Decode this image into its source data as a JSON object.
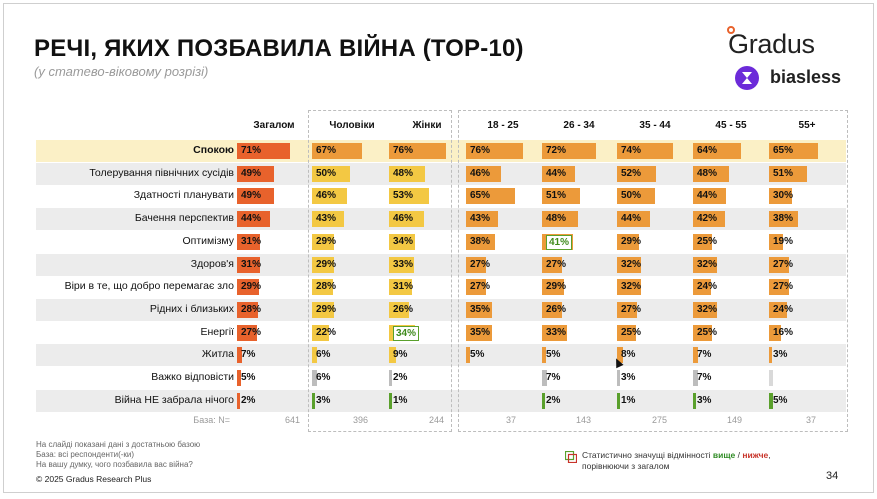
{
  "header": {
    "title": "РЕЧІ, ЯКИХ ПОЗБАВИЛА ВІЙНА (ТОР-10)",
    "subtitle": "(у статево-віковому розрізі)"
  },
  "logos": {
    "gradus": "Gradus",
    "biasless": "biasless"
  },
  "colors": {
    "highlight_row": "#fbf0c6",
    "zebra": "#ececec",
    "scale_high": "#e8622c",
    "scale_mid": "#ec9a3a",
    "scale_low": "#f3c843",
    "neutral": "#bdbdbd",
    "sig_green": "#5aa02c",
    "sig_red": "#c8342a"
  },
  "chart_data": {
    "type": "table",
    "title": "РЕЧІ, ЯКИХ ПОЗБАВИЛА ВІЙНА (ТОР-10)",
    "unit": "%",
    "columns": [
      "Загалом",
      "Чоловіки",
      "Жінки",
      "18 - 25",
      "26 - 34",
      "35 - 44",
      "45 - 55",
      "55+"
    ],
    "rows": [
      {
        "label": "Спокою",
        "values": [
          71,
          67,
          76,
          76,
          72,
          74,
          64,
          65
        ]
      },
      {
        "label": "Толерування північних сусідів",
        "values": [
          49,
          50,
          48,
          46,
          44,
          52,
          48,
          51
        ]
      },
      {
        "label": "Здатності планувати",
        "values": [
          49,
          46,
          53,
          65,
          51,
          50,
          44,
          30
        ]
      },
      {
        "label": "Бачення перспектив",
        "values": [
          44,
          43,
          46,
          43,
          48,
          44,
          42,
          38
        ]
      },
      {
        "label": "Оптимізму",
        "values": [
          31,
          29,
          34,
          38,
          41,
          29,
          25,
          19
        ]
      },
      {
        "label": "Здоров'я",
        "values": [
          31,
          29,
          33,
          27,
          27,
          32,
          32,
          27
        ]
      },
      {
        "label": "Віри в те, що добро перемагає зло",
        "values": [
          29,
          28,
          31,
          27,
          29,
          32,
          24,
          27
        ]
      },
      {
        "label": "Рідних і близьких",
        "values": [
          28,
          29,
          26,
          35,
          26,
          27,
          32,
          24
        ]
      },
      {
        "label": "Енергії",
        "values": [
          27,
          22,
          34,
          35,
          33,
          25,
          25,
          16
        ]
      },
      {
        "label": "Житла",
        "values": [
          7,
          6,
          9,
          5,
          5,
          8,
          7,
          3
        ]
      },
      {
        "label": "Важко відповісти",
        "values": [
          5,
          6,
          2,
          null,
          7,
          3,
          7,
          null
        ]
      },
      {
        "label": "Війна НЕ забрала нічого",
        "values": [
          2,
          3,
          1,
          null,
          2,
          1,
          3,
          5
        ]
      }
    ],
    "significant_higher": [
      {
        "row": 4,
        "col": 4
      },
      {
        "row": 8,
        "col": 2
      }
    ],
    "base_label": "База: N=",
    "base": [
      641,
      396,
      244,
      37,
      143,
      275,
      149,
      37
    ]
  },
  "footer": {
    "note1": "На слайді показані дані з достатньою базою",
    "note2": "База: всі респонденти(-ки)",
    "note3": "На вашу думку, чого позбавила вас війна?",
    "copyright": "© 2025 Gradus Research Plus",
    "legend_prefix": "Статистично значущі відмінності",
    "legend_high": "вище",
    "legend_sep": "/",
    "legend_low": "нижче",
    "legend_suffix": ",",
    "legend_line2": "порівнюючи з загалом",
    "page_number": "34"
  }
}
